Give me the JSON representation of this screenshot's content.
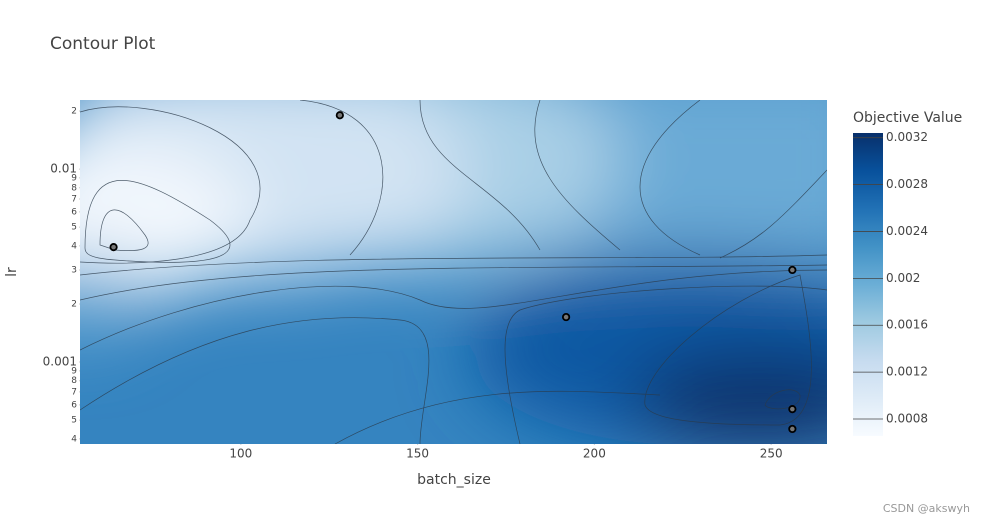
{
  "chart_data": {
    "type": "contour",
    "title": "Contour Plot",
    "x_label": "batch_size",
    "y_label": "lr",
    "x": [
      64,
      128,
      192,
      256,
      256,
      256
    ],
    "y": [
      0.00394,
      0.019,
      0.00171,
      0.003,
      0.00057,
      0.00045
    ],
    "marker_color": "#777777",
    "xlim": [
      54.5,
      265.8
    ],
    "xticks": [
      100,
      150,
      200,
      250
    ],
    "ylim": [
      0.000376,
      0.0228
    ],
    "y_scale": "log",
    "yticks": [
      {
        "value": 0.0004,
        "label": "4"
      },
      {
        "value": 0.0005,
        "label": "5"
      },
      {
        "value": 0.0006,
        "label": "6"
      },
      {
        "value": 0.0007,
        "label": "7"
      },
      {
        "value": 0.0008,
        "label": "8"
      },
      {
        "value": 0.0009,
        "label": "9"
      },
      0.001,
      {
        "value": 0.002,
        "label": "2"
      },
      {
        "value": 0.003,
        "label": "3"
      },
      {
        "value": 0.004,
        "label": "4"
      },
      {
        "value": 0.005,
        "label": "5"
      },
      {
        "value": 0.006,
        "label": "6"
      },
      {
        "value": 0.007,
        "label": "7"
      },
      {
        "value": 0.008,
        "label": "8"
      },
      {
        "value": 0.009,
        "label": "9"
      },
      0.01,
      {
        "value": 0.02,
        "label": "2"
      }
    ],
    "colorbar": {
      "title": "Objective Value",
      "zlim": [
        0.000655,
        0.00324
      ],
      "ticks": [
        0.0008,
        0.0012,
        0.0016,
        0.002,
        0.0024,
        0.0028,
        0.0032
      ],
      "colorscale": [
        "#f7fbff",
        "#deebf7",
        "#c6dbef",
        "#9ecae1",
        "#6baed6",
        "#4292c6",
        "#2171b5",
        "#08519c",
        "#08306b"
      ]
    }
  },
  "watermark": "CSDN @akswyh"
}
